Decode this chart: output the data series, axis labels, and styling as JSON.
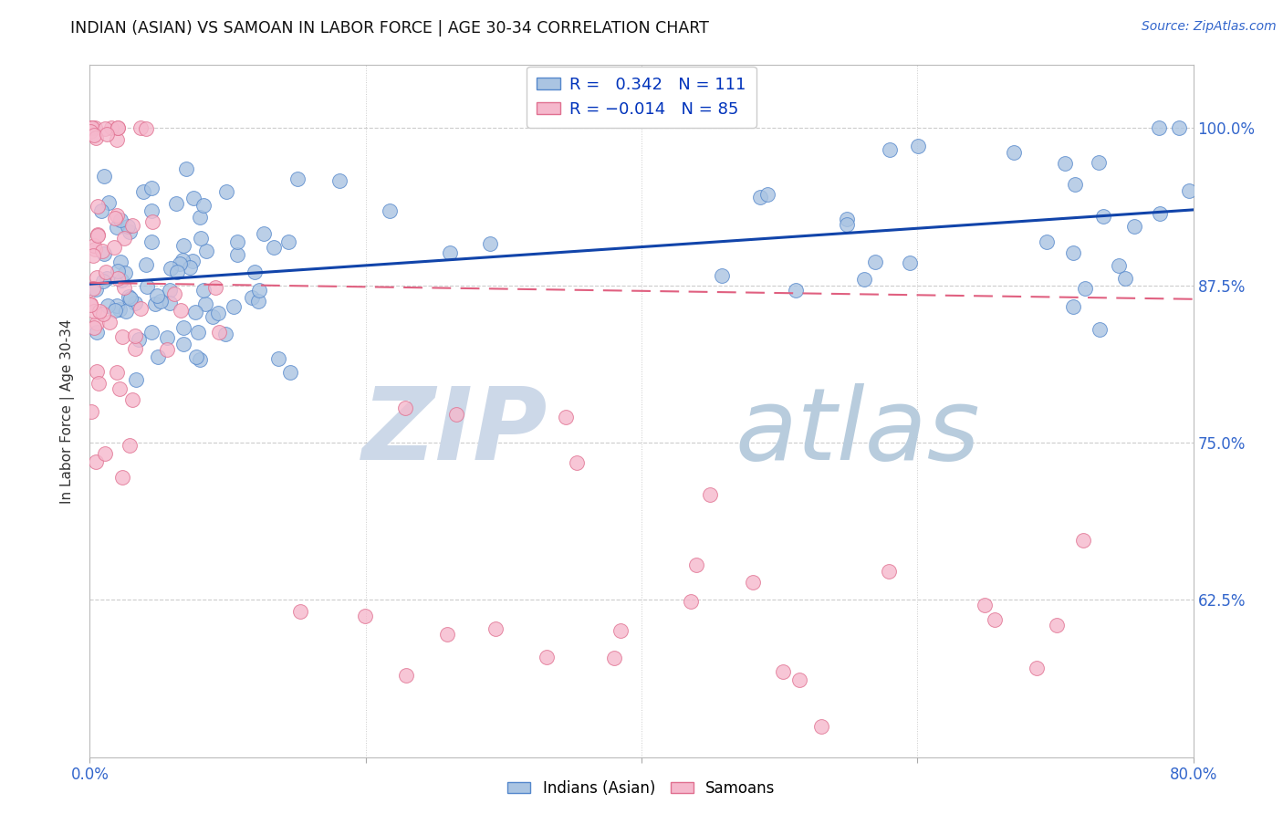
{
  "title": "INDIAN (ASIAN) VS SAMOAN IN LABOR FORCE | AGE 30-34 CORRELATION CHART",
  "source": "Source: ZipAtlas.com",
  "ylabel": "In Labor Force | Age 30-34",
  "ytick_labels": [
    "62.5%",
    "75.0%",
    "87.5%",
    "100.0%"
  ],
  "ytick_values": [
    0.625,
    0.75,
    0.875,
    1.0
  ],
  "xlim": [
    0.0,
    0.8
  ],
  "ylim": [
    0.5,
    1.05
  ],
  "r_indian": 0.342,
  "n_indian": 111,
  "r_samoan": -0.014,
  "n_samoan": 85,
  "indian_color": "#aac4e2",
  "indian_edge": "#5588cc",
  "samoan_color": "#f5b8cc",
  "samoan_edge": "#e07090",
  "trend_indian_color": "#1144aa",
  "trend_samoan_color": "#e06080",
  "watermark_zip_color": "#ccd8e8",
  "watermark_atlas_color": "#b8ccdd",
  "legend_r_color": "#0044cc",
  "legend_n_color": "#0044cc"
}
